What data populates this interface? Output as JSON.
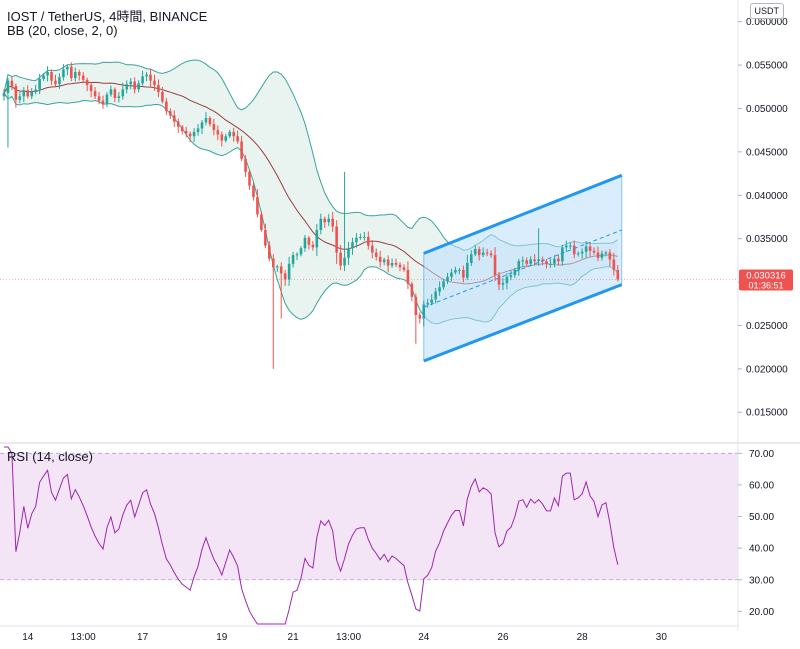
{
  "header": {
    "symbol_line": "IOST / TetherUS, 4時間, BINANCE",
    "indicator_line": "BB (20, close, 2, 0)",
    "rsi_label": "RSI (14, close)",
    "quote_currency": "USDT"
  },
  "price_marker": {
    "price": "0.030316",
    "countdown": "01:36:51",
    "color": "#ef5350"
  },
  "colors": {
    "up": "#26a69a",
    "down": "#ef5350",
    "bb_basis": "#9c3d3d",
    "bb_band": "#3aa49b",
    "bb_fill": "#e7f3f0",
    "channel": "#2196f3",
    "channel_fill": "#bbdefb",
    "rsi_line": "#9c27b0",
    "rsi_fill": "#f3e5f5"
  },
  "chart_data": [
    {
      "type": "candlestick",
      "title": "IOST / TetherUS, 4時間, BINANCE",
      "x_ticks": [
        "14",
        "13:00",
        "17",
        "19",
        "21",
        "13:00",
        "24",
        "26",
        "28",
        "30"
      ],
      "x_tick_bars": [
        6,
        20,
        35,
        55,
        73,
        87,
        106,
        126,
        146,
        166
      ],
      "y_ticks": [
        "0.015000",
        "0.020000",
        "0.025000",
        "0.030000",
        "0.035000",
        "0.040000",
        "0.045000",
        "0.050000",
        "0.055000",
        "0.060000"
      ],
      "ylim": [
        0.0118,
        0.0625
      ],
      "bar_count": 175,
      "closes": [
        0.0518,
        0.0532,
        0.0526,
        0.051,
        0.0514,
        0.0521,
        0.0514,
        0.0519,
        0.0522,
        0.0534,
        0.0538,
        0.0542,
        0.0532,
        0.0528,
        0.0536,
        0.0545,
        0.0548,
        0.0535,
        0.0542,
        0.0538,
        0.0533,
        0.0527,
        0.052,
        0.0514,
        0.0509,
        0.0505,
        0.0516,
        0.0522,
        0.0512,
        0.0514,
        0.0522,
        0.0528,
        0.0531,
        0.0522,
        0.0529,
        0.0537,
        0.0539,
        0.0532,
        0.0527,
        0.0519,
        0.0508,
        0.0497,
        0.0492,
        0.0485,
        0.0479,
        0.0474,
        0.0471,
        0.0468,
        0.0473,
        0.0477,
        0.0484,
        0.0489,
        0.0482,
        0.0475,
        0.047,
        0.0463,
        0.0468,
        0.0473,
        0.0468,
        0.0462,
        0.0442,
        0.0427,
        0.0411,
        0.0398,
        0.0378,
        0.036,
        0.0342,
        0.0327,
        0.0317,
        0.0318,
        0.031,
        0.0303,
        0.0321,
        0.0331,
        0.0332,
        0.0339,
        0.0351,
        0.0343,
        0.034,
        0.036,
        0.0373,
        0.0369,
        0.0373,
        0.0364,
        0.0334,
        0.0319,
        0.0328,
        0.0339,
        0.0346,
        0.0351,
        0.0352,
        0.0352,
        0.0342,
        0.0334,
        0.0329,
        0.0323,
        0.0326,
        0.0319,
        0.0322,
        0.032,
        0.0317,
        0.0314,
        0.0298,
        0.0283,
        0.0262,
        0.0258,
        0.0274,
        0.0276,
        0.028,
        0.0289,
        0.0294,
        0.0301,
        0.0306,
        0.0311,
        0.0314,
        0.0314,
        0.0305,
        0.0322,
        0.0332,
        0.0338,
        0.0331,
        0.0334,
        0.0333,
        0.0331,
        0.0308,
        0.0297,
        0.0299,
        0.0306,
        0.0308,
        0.0314,
        0.0324,
        0.0325,
        0.0321,
        0.0326,
        0.0324,
        0.0326,
        0.0324,
        0.0321,
        0.0321,
        0.0327,
        0.0324,
        0.034,
        0.0342,
        0.0342,
        0.0332,
        0.0333,
        0.0335,
        0.0341,
        0.0336,
        0.0334,
        0.0328,
        0.0333,
        0.0334,
        0.0326,
        0.0314,
        0.0303
      ],
      "bollinger": {
        "length": 20,
        "source": "close",
        "mult": 2,
        "offset": 0
      },
      "channel": {
        "upper": [
          [
            106,
            0.0333
          ],
          [
            156,
            0.0423
          ]
        ],
        "lower": [
          [
            106,
            0.0209
          ],
          [
            156,
            0.0297
          ]
        ],
        "mid_dashed": [
          [
            106,
            0.0271
          ],
          [
            156,
            0.036
          ]
        ]
      }
    },
    {
      "type": "line",
      "title": "RSI (14, close)",
      "y_ticks": [
        "20.00",
        "30.00",
        "40.00",
        "50.00",
        "60.00",
        "70.00"
      ],
      "ylim": [
        16,
        72
      ],
      "band": [
        30,
        70
      ],
      "rsi_length": 14,
      "source": "close"
    }
  ]
}
